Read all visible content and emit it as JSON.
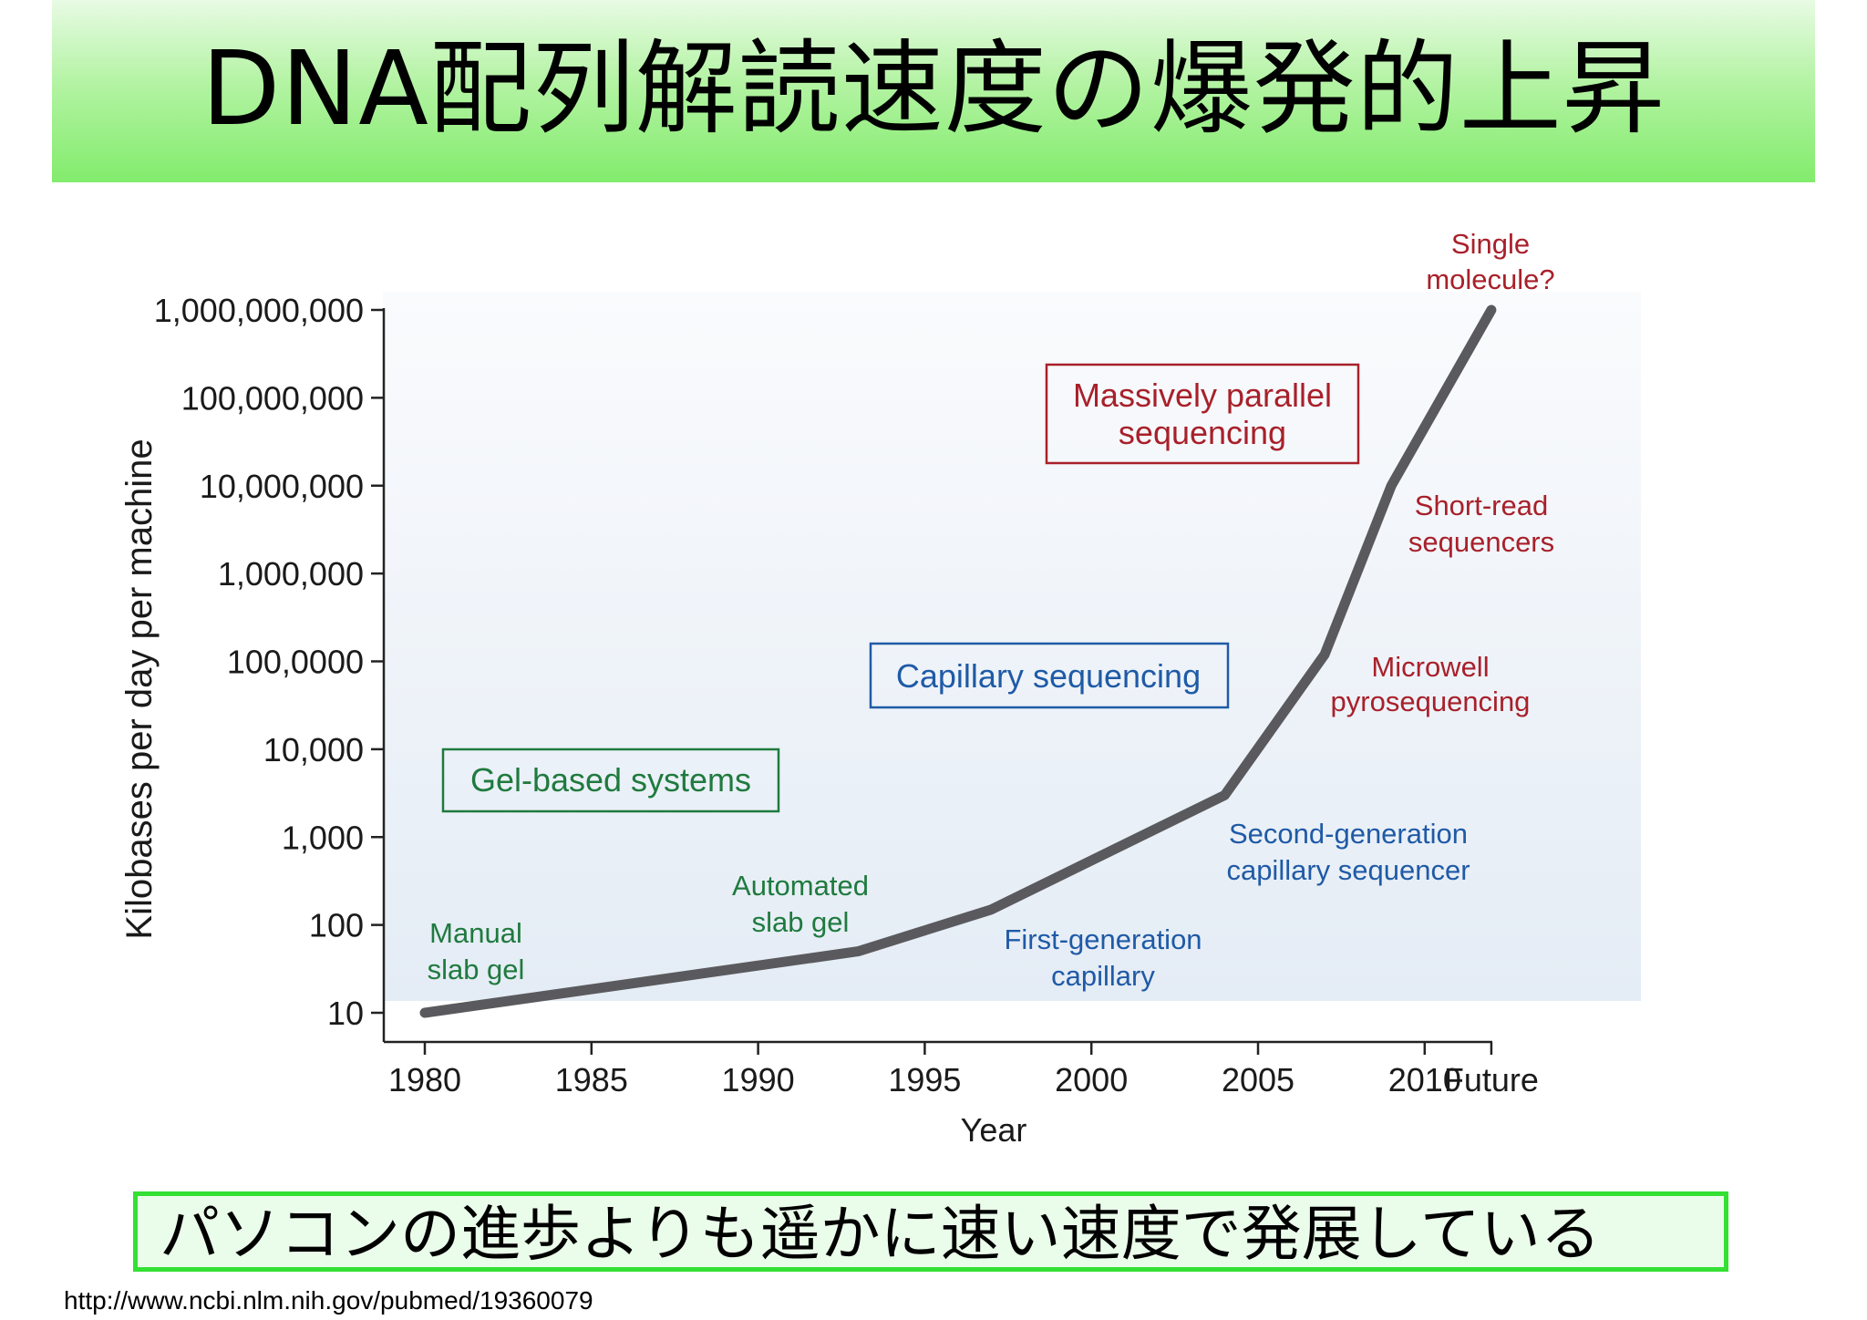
{
  "slide": {
    "title": "DNA配列解読速度の爆発的上昇",
    "caption": "パソコンの進歩よりも遥かに速い速度で発展している",
    "source": "http://www.ncbi.nlm.nih.gov/pubmed/19360079"
  },
  "chart_data": {
    "type": "line",
    "xlabel": "Year",
    "ylabel": "Kilobases per day per machine",
    "y_scale": "log",
    "ylim": [
      10,
      1000000000
    ],
    "x_ticks": [
      "1980",
      "1985",
      "1990",
      "1995",
      "2000",
      "2005",
      "2010",
      "Future"
    ],
    "y_ticks": [
      "1,000,000,000",
      "100,000,000",
      "10,000,000",
      "1,000,000",
      "100,0000",
      "10,000",
      "1,000",
      "100",
      "10"
    ],
    "series": [
      {
        "color": "#5a5a5e",
        "points": [
          {
            "x": "1980",
            "y": 10
          },
          {
            "x": "1993",
            "y": 50
          },
          {
            "x": "1997",
            "y": 150
          },
          {
            "x": "2004",
            "y": 3000
          },
          {
            "x": "2007",
            "y": 120000
          },
          {
            "x": "2009",
            "y": 10000000
          },
          {
            "x": "Future",
            "y": 1000000000
          }
        ]
      }
    ],
    "region_labels": [
      {
        "text": "Gel-based systems",
        "color": "#1f7a3e"
      },
      {
        "text": "Capillary sequencing",
        "color": "#1f5aa6"
      },
      {
        "text": "Massively parallel sequencing",
        "color": "#a8202a"
      }
    ],
    "annotations": [
      {
        "text": "Manual slab gel",
        "color": "#1f7a3e"
      },
      {
        "text": "Automated slab gel",
        "color": "#1f7a3e"
      },
      {
        "text": "First-generation capillary",
        "color": "#1f5aa6"
      },
      {
        "text": "Second-generation capillary sequencer",
        "color": "#1f5aa6"
      },
      {
        "text": "Microwell pyrosequencing",
        "color": "#a8202a"
      },
      {
        "text": "Short-read sequencers",
        "color": "#a8202a"
      },
      {
        "text": "Single molecule?",
        "color": "#a8202a"
      }
    ]
  }
}
